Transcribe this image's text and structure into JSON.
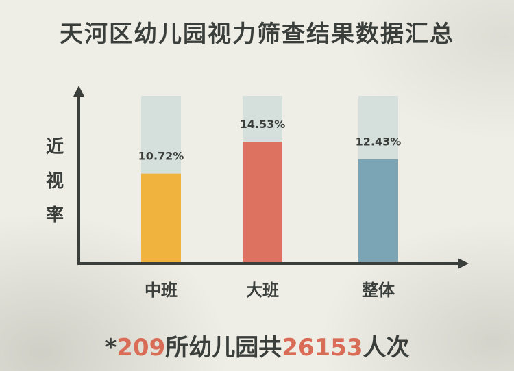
{
  "title": "天河区幼儿园视力筛查结果数据汇总",
  "footer": {
    "prefix": "*",
    "kindergartens": "209",
    "middle": "所幼儿园共",
    "people": "26153",
    "suffix": "人次"
  },
  "chart_data": {
    "type": "bar",
    "ylabel": "近视率",
    "categories": [
      "中班",
      "大班",
      "整体"
    ],
    "values": [
      10.72,
      14.53,
      12.43
    ],
    "value_labels": [
      "10.72%",
      "14.53%",
      "12.43%"
    ],
    "ylim": [
      0,
      20
    ],
    "colors": [
      "#f0b33e",
      "#de7260",
      "#7ba4b5"
    ],
    "track_color": "#d5dfdb",
    "grid": false
  }
}
